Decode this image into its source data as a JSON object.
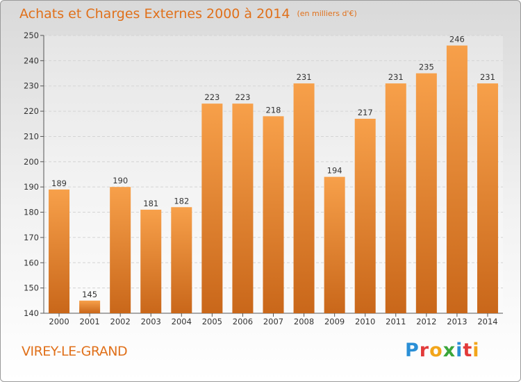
{
  "title": "Achats et Charges Externes 2000 à 2014",
  "subtitle": "(en milliers d'€)",
  "place": "VIREY-LE-GRAND",
  "logo": {
    "text": "Proxiti",
    "letters": [
      {
        "ch": "P",
        "color": "#2a8fd6"
      },
      {
        "ch": "r",
        "color": "#e23a3a"
      },
      {
        "ch": "o",
        "color": "#f2a51a"
      },
      {
        "ch": "x",
        "color": "#3aa63a"
      },
      {
        "ch": "i",
        "color": "#2a8fd6"
      },
      {
        "ch": "t",
        "color": "#e23a3a"
      },
      {
        "ch": "i",
        "color": "#f2a51a"
      }
    ]
  },
  "colors": {
    "bar_top": "#f7a04a",
    "bar_bottom": "#c9671a",
    "accent": "#e0701a"
  },
  "chart_data": {
    "type": "bar",
    "categories": [
      "2000",
      "2001",
      "2002",
      "2003",
      "2004",
      "2005",
      "2006",
      "2007",
      "2008",
      "2009",
      "2010",
      "2011",
      "2012",
      "2013",
      "2014"
    ],
    "values": [
      189,
      145,
      190,
      181,
      182,
      223,
      223,
      218,
      231,
      194,
      217,
      231,
      235,
      246,
      231
    ],
    "ylim": [
      140,
      250
    ],
    "yticks": [
      140,
      150,
      160,
      170,
      180,
      190,
      200,
      210,
      220,
      230,
      240,
      250
    ],
    "grid": true
  }
}
